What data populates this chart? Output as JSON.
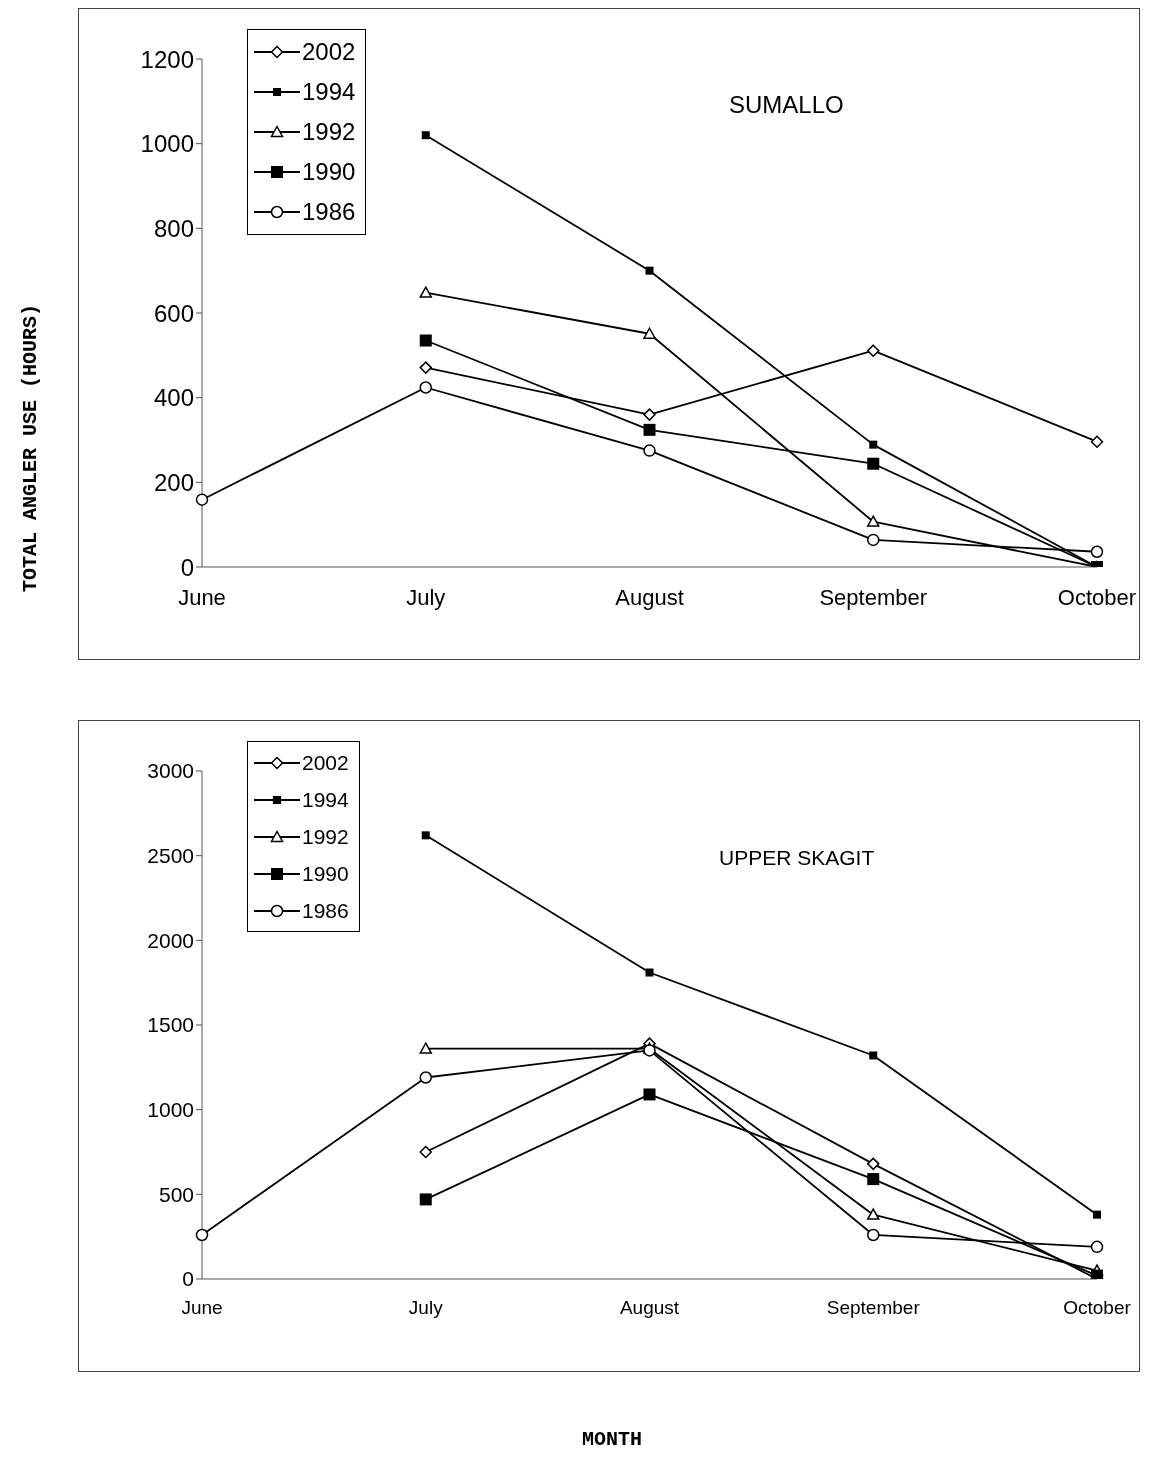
{
  "chart_data": [
    {
      "type": "line",
      "title": "SUMALLO",
      "ylabel": "TOTAL ANGLER USE (HOURS)",
      "categories": [
        "June",
        "July",
        "August",
        "September",
        "October"
      ],
      "ylim": [
        0,
        1200
      ],
      "yticks": [
        0,
        200,
        400,
        600,
        800,
        1000,
        1200
      ],
      "legend": "top left",
      "grid": false,
      "series": [
        {
          "name": "2002",
          "color": "#000000",
          "marker": "diamond",
          "values": [
            null,
            471,
            360,
            511,
            296
          ]
        },
        {
          "name": "1994",
          "color": "#000000",
          "marker": "square",
          "values": [
            null,
            1020,
            700,
            289,
            0
          ]
        },
        {
          "name": "1992",
          "color": "#000000",
          "marker": "triangle",
          "values": [
            null,
            648,
            551,
            107,
            0
          ]
        },
        {
          "name": "1990",
          "color": "#000000",
          "marker": "square",
          "values": [
            null,
            535,
            324,
            244,
            0
          ]
        },
        {
          "name": "1986",
          "color": "#000000",
          "marker": "circle",
          "values": [
            159,
            424,
            275,
            64,
            36
          ]
        }
      ]
    },
    {
      "type": "line",
      "title": "UPPER SKAGIT",
      "xlabel": "MONTH",
      "categories": [
        "June",
        "July",
        "August",
        "September",
        "October"
      ],
      "ylim": [
        0,
        3000
      ],
      "yticks": [
        0,
        500,
        1000,
        1500,
        2000,
        2500,
        3000
      ],
      "legend": "top left",
      "grid": false,
      "series": [
        {
          "name": "2002",
          "color": "#000000",
          "marker": "diamond",
          "values": [
            null,
            750,
            1390,
            680,
            0
          ]
        },
        {
          "name": "1994",
          "color": "#000000",
          "marker": "square",
          "values": [
            null,
            2620,
            1810,
            1320,
            380
          ]
        },
        {
          "name": "1992",
          "color": "#000000",
          "marker": "triangle",
          "values": [
            null,
            1360,
            1360,
            380,
            50
          ]
        },
        {
          "name": "1990",
          "color": "#000000",
          "marker": "square",
          "values": [
            null,
            470,
            1090,
            590,
            20
          ]
        },
        {
          "name": "1986",
          "color": "#000000",
          "marker": "circle",
          "values": [
            260,
            1190,
            1350,
            260,
            190
          ]
        }
      ]
    }
  ]
}
